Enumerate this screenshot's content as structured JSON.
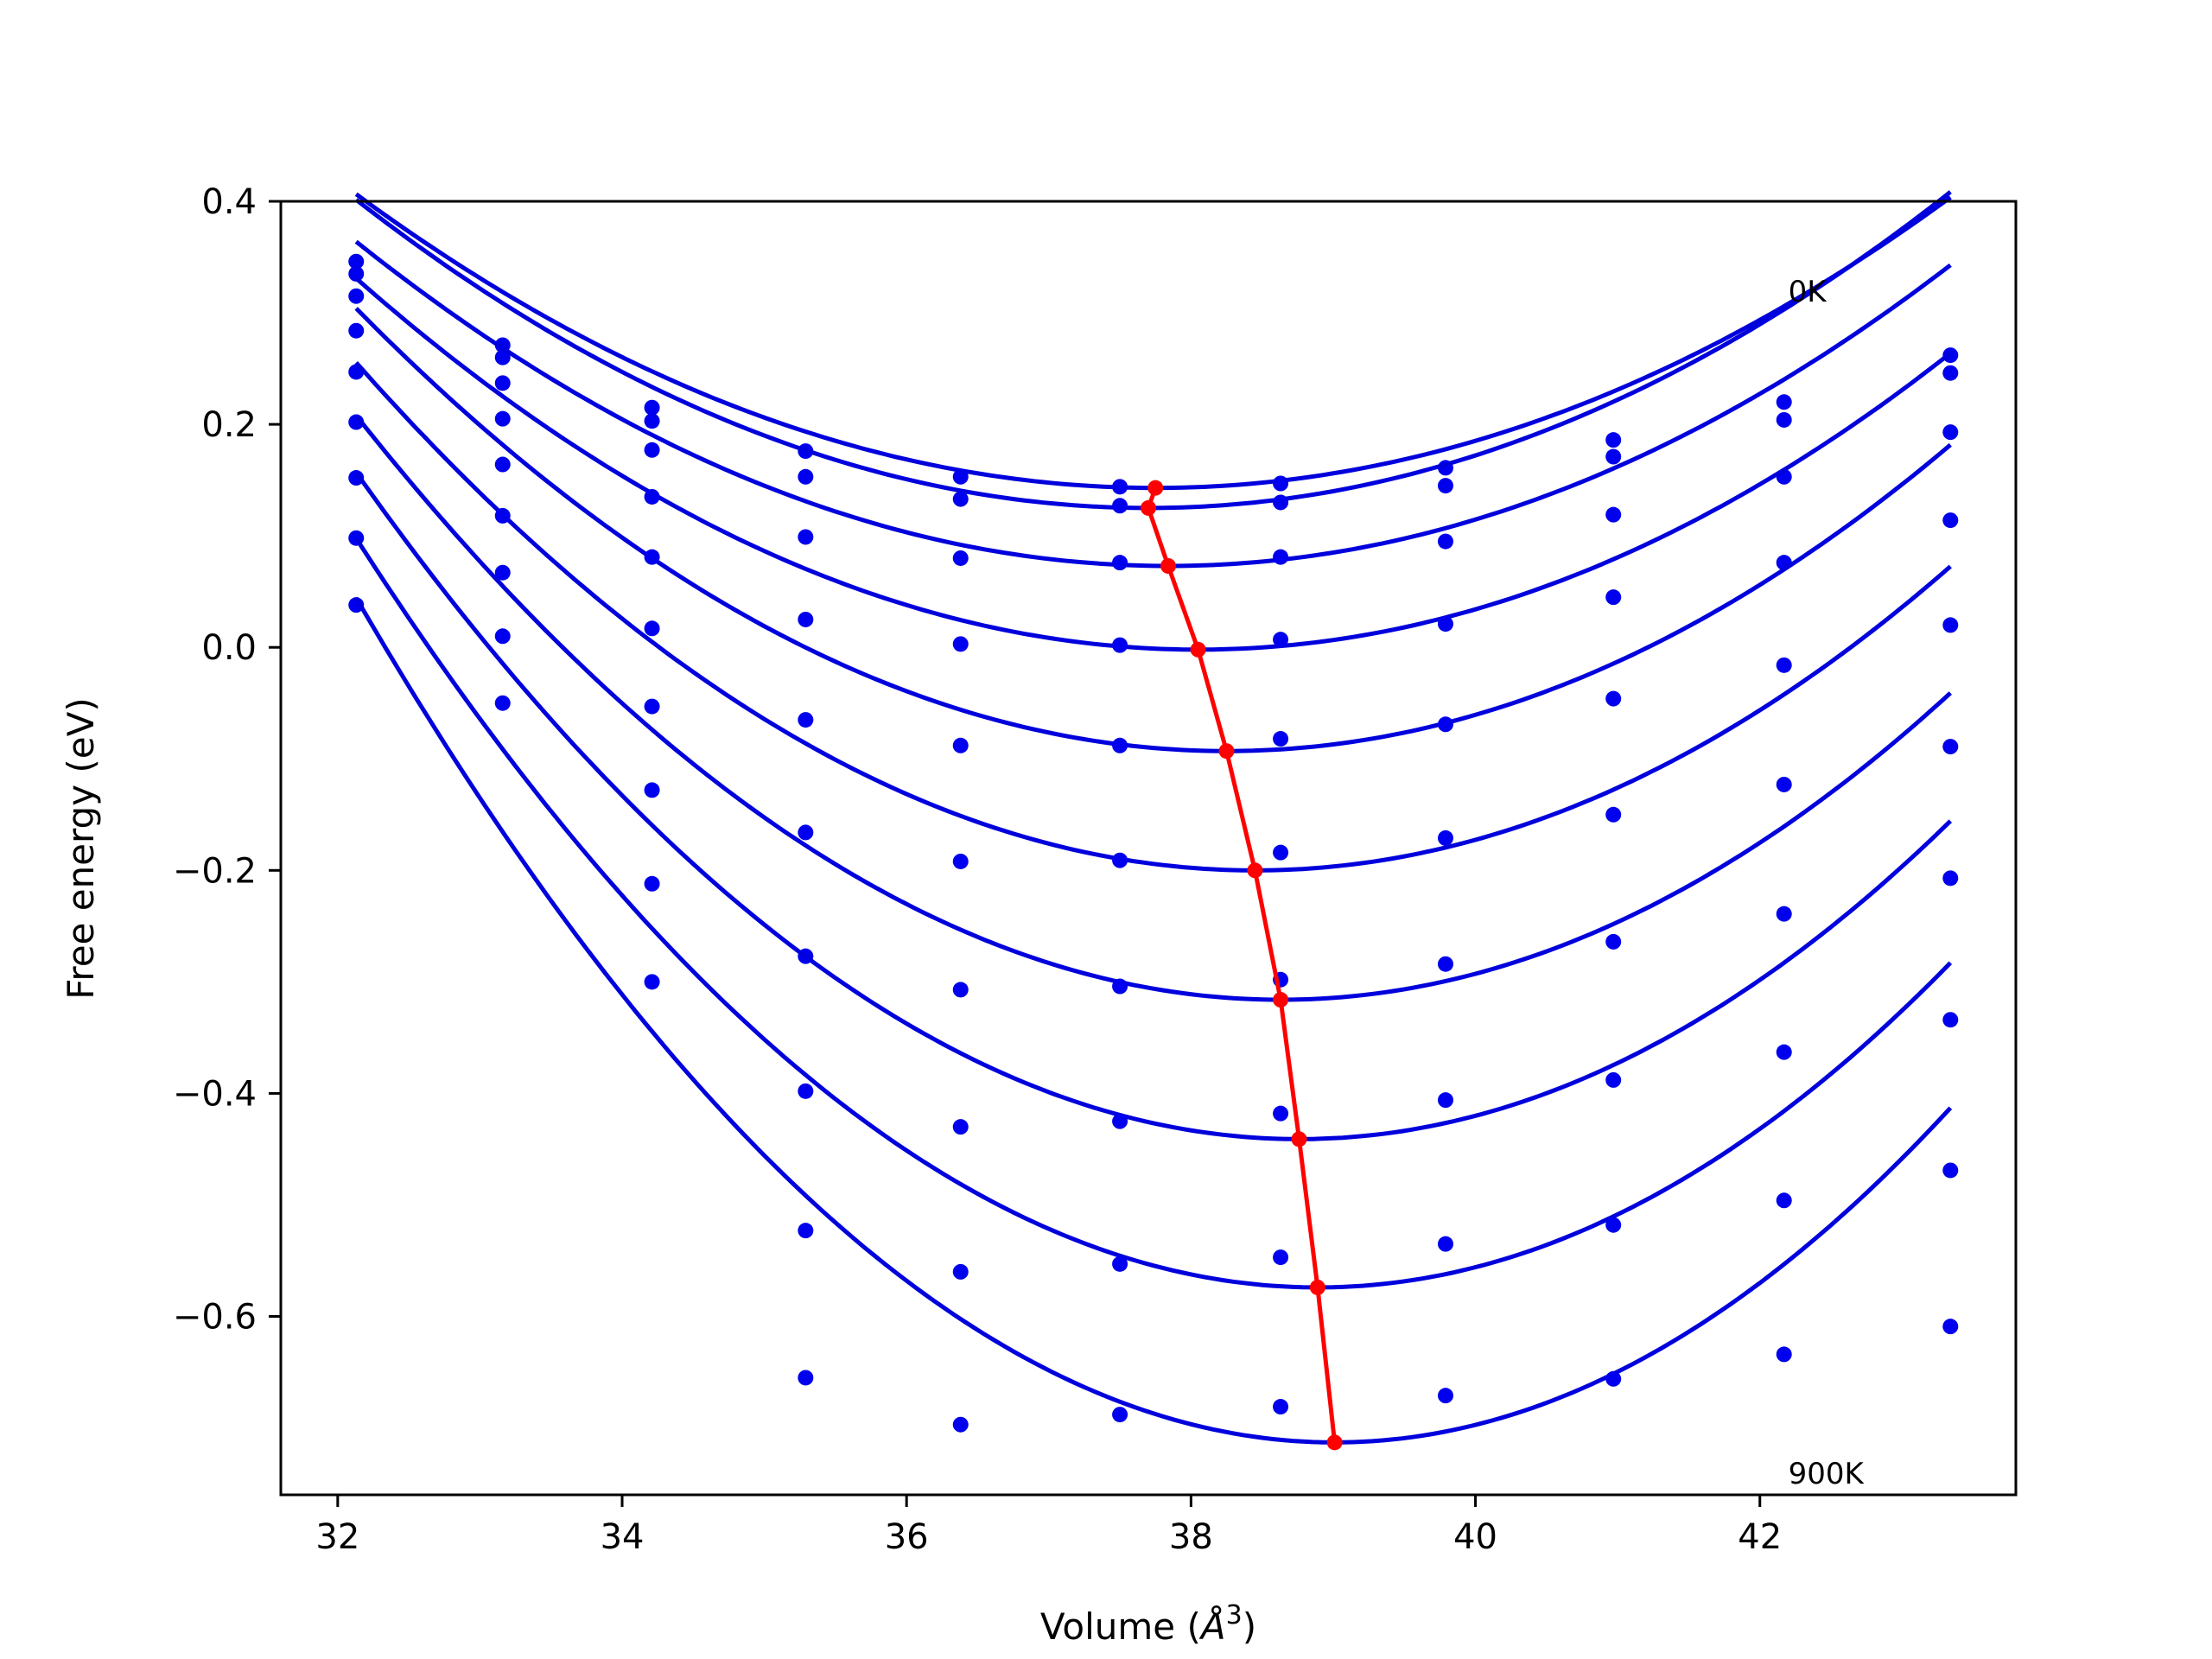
{
  "chart_data": {
    "type": "scatter",
    "title": "",
    "xlabel": "Volume (Å³)",
    "xlabel_parts": [
      "Volume (",
      "Å",
      "3",
      ")"
    ],
    "ylabel": "Free energy (eV)",
    "xlim": [
      31.6,
      43.8
    ],
    "ylim": [
      -0.76,
      0.4
    ],
    "xticks": [
      32,
      34,
      36,
      38,
      40,
      42
    ],
    "xtick_labels": [
      "32",
      "34",
      "36",
      "38",
      "40",
      "42"
    ],
    "yticks": [
      0.4,
      0.2,
      0.0,
      -0.2,
      -0.4,
      -0.6
    ],
    "ytick_labels": [
      "0.4",
      "0.2",
      "0.0",
      "−0.2",
      "−0.4",
      "−0.6"
    ],
    "grid": false,
    "annotations": [
      {
        "text": "0K",
        "x": 42.2,
        "y": 0.31
      },
      {
        "text": "900K",
        "x": 42.2,
        "y": -0.75
      }
    ],
    "colors": {
      "points": "#0000ee",
      "fit": "#0000dd",
      "minimum_line": "#ff0000"
    },
    "x": [
      32.13,
      33.16,
      34.21,
      35.29,
      36.38,
      37.5,
      38.63,
      39.79,
      40.97,
      42.17,
      43.34
    ],
    "series": [
      {
        "values": [
          0.346,
          0.271,
          0.215,
          0.176,
          0.153,
          0.144,
          0.147,
          0.161,
          0.186,
          0.22,
          0.262
        ],
        "fit": {
          "a": 0.00834,
          "v0": 37.75,
          "e0": 0.143
        }
      },
      {
        "values": [
          0.335,
          0.26,
          0.203,
          0.153,
          0.133,
          0.127,
          0.13,
          0.145,
          0.171,
          0.204,
          0.246
        ],
        "fit": {
          "a": 0.00891,
          "v0": 37.7,
          "e0": 0.125
        }
      },
      {
        "values": [
          0.315,
          0.237,
          0.177,
          0.099,
          0.08,
          0.076,
          0.081,
          0.095,
          0.119,
          0.153,
          0.193
        ],
        "fit": {
          "a": 0.00892,
          "v0": 37.84,
          "e0": 0.073
        }
      },
      {
        "values": [
          0.284,
          0.205,
          0.135,
          0.025,
          0.003,
          0.002,
          0.007,
          0.021,
          0.045,
          0.076,
          0.114
        ],
        "fit": {
          "a": 0.0095,
          "v0": 38.05,
          "e0": -0.002
        }
      },
      {
        "values": [
          0.247,
          0.164,
          0.081,
          -0.065,
          -0.088,
          -0.088,
          -0.082,
          -0.069,
          -0.046,
          -0.016,
          0.02
        ],
        "fit": {
          "a": 0.0106,
          "v0": 38.25,
          "e0": -0.093
        }
      },
      {
        "values": [
          0.202,
          0.118,
          0.017,
          -0.166,
          -0.192,
          -0.191,
          -0.184,
          -0.171,
          -0.15,
          -0.123,
          -0.089
        ],
        "fit": {
          "a": 0.0114,
          "v0": 38.45,
          "e0": -0.2
        }
      },
      {
        "values": [
          0.152,
          0.067,
          -0.053,
          -0.277,
          -0.307,
          -0.304,
          -0.298,
          -0.284,
          -0.264,
          -0.239,
          -0.207
        ],
        "fit": {
          "a": 0.0124,
          "v0": 38.63,
          "e0": -0.316
        }
      },
      {
        "values": [
          0.098,
          0.01,
          -0.128,
          -0.398,
          -0.43,
          -0.425,
          -0.418,
          -0.406,
          -0.388,
          -0.363,
          -0.334
        ],
        "fit": {
          "a": 0.0136,
          "v0": 38.76,
          "e0": -0.441
        }
      },
      {
        "values": [
          0.038,
          -0.05,
          -0.212,
          -0.523,
          -0.56,
          -0.553,
          -0.547,
          -0.535,
          -0.518,
          -0.496,
          -0.469
        ],
        "fit": {
          "a": 0.0147,
          "v0": 38.89,
          "e0": -0.574
        }
      },
      {
        "values": [
          null,
          null,
          -0.3,
          -0.655,
          -0.697,
          -0.688,
          -0.681,
          -0.671,
          -0.656,
          -0.634,
          -0.609
        ],
        "fit": {
          "a": 0.016,
          "v0": 39.01,
          "e0": -0.713
        }
      }
    ],
    "fit_x_range": [
      32.13,
      43.34
    ],
    "minimum_line": {
      "x": [
        37.75,
        37.7,
        37.84,
        38.05,
        38.25,
        38.45,
        38.63,
        38.76,
        38.89,
        39.01
      ],
      "y": [
        0.143,
        0.125,
        0.073,
        -0.002,
        -0.093,
        -0.2,
        -0.316,
        -0.441,
        -0.574,
        -0.713
      ]
    }
  }
}
